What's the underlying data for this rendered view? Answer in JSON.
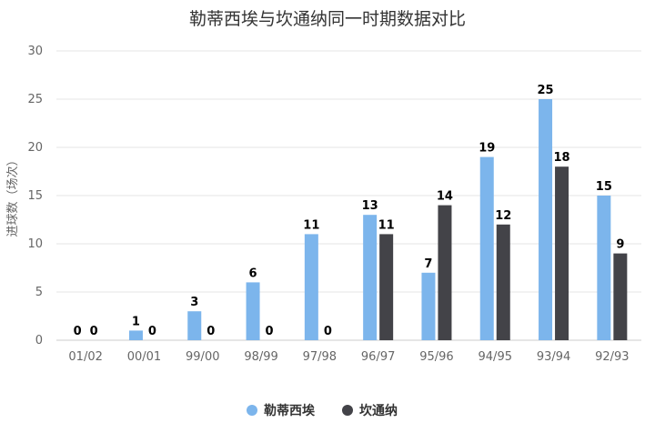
{
  "chart_data": {
    "type": "bar",
    "title": "勒蒂西埃与坎通纳同一时期数据对比",
    "ylabel": "进球数（场次）",
    "xlabel": "",
    "ylim": [
      0,
      30
    ],
    "yticks": [
      0,
      5,
      10,
      15,
      20,
      25,
      30
    ],
    "grid": true,
    "legend_position": "bottom",
    "categories": [
      "01/02",
      "00/01",
      "99/00",
      "98/99",
      "97/98",
      "96/97",
      "95/96",
      "94/95",
      "93/94",
      "92/93"
    ],
    "series": [
      {
        "name": "勒蒂西埃",
        "color": "#7cb5ec",
        "values": [
          0,
          1,
          3,
          6,
          11,
          13,
          7,
          19,
          25,
          15
        ]
      },
      {
        "name": "坎通纳",
        "color": "#434348",
        "values": [
          0,
          0,
          0,
          0,
          0,
          11,
          14,
          12,
          18,
          9
        ]
      }
    ]
  }
}
